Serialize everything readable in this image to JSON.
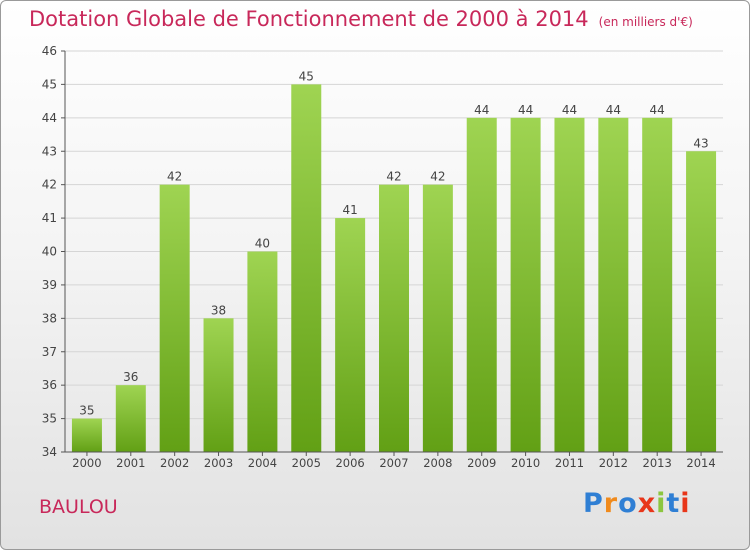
{
  "chart_data": {
    "type": "bar",
    "title": "Dotation Globale de Fonctionnement de 2000 à 2014",
    "subtitle": "(en milliers d'€)",
    "categories": [
      "2000",
      "2001",
      "2002",
      "2003",
      "2004",
      "2005",
      "2006",
      "2007",
      "2008",
      "2009",
      "2010",
      "2011",
      "2012",
      "2013",
      "2014"
    ],
    "values": [
      35,
      36,
      42,
      38,
      40,
      45,
      41,
      42,
      42,
      44,
      44,
      44,
      44,
      44,
      43
    ],
    "ylim": [
      34,
      46
    ],
    "yticks": [
      34,
      35,
      36,
      37,
      38,
      39,
      40,
      41,
      42,
      43,
      44,
      45,
      46
    ],
    "grid": true,
    "data_labels": true,
    "colors": {
      "bar_top": "#9fd452",
      "bar_bottom": "#62a015",
      "grid": "#d5d5d5",
      "axis": "#555555"
    }
  },
  "footer": {
    "commune": "BAULOU",
    "logo_letters": [
      "P",
      "r",
      "o",
      "x",
      "i",
      "t",
      "i"
    ],
    "logo_colors": [
      "#2f7fd4",
      "#f08a1c",
      "#2f7fd4",
      "#e8361a",
      "#8cc63f",
      "#2f7fd4",
      "#e8361a"
    ]
  },
  "theme": {
    "accent": "#c8285a"
  }
}
